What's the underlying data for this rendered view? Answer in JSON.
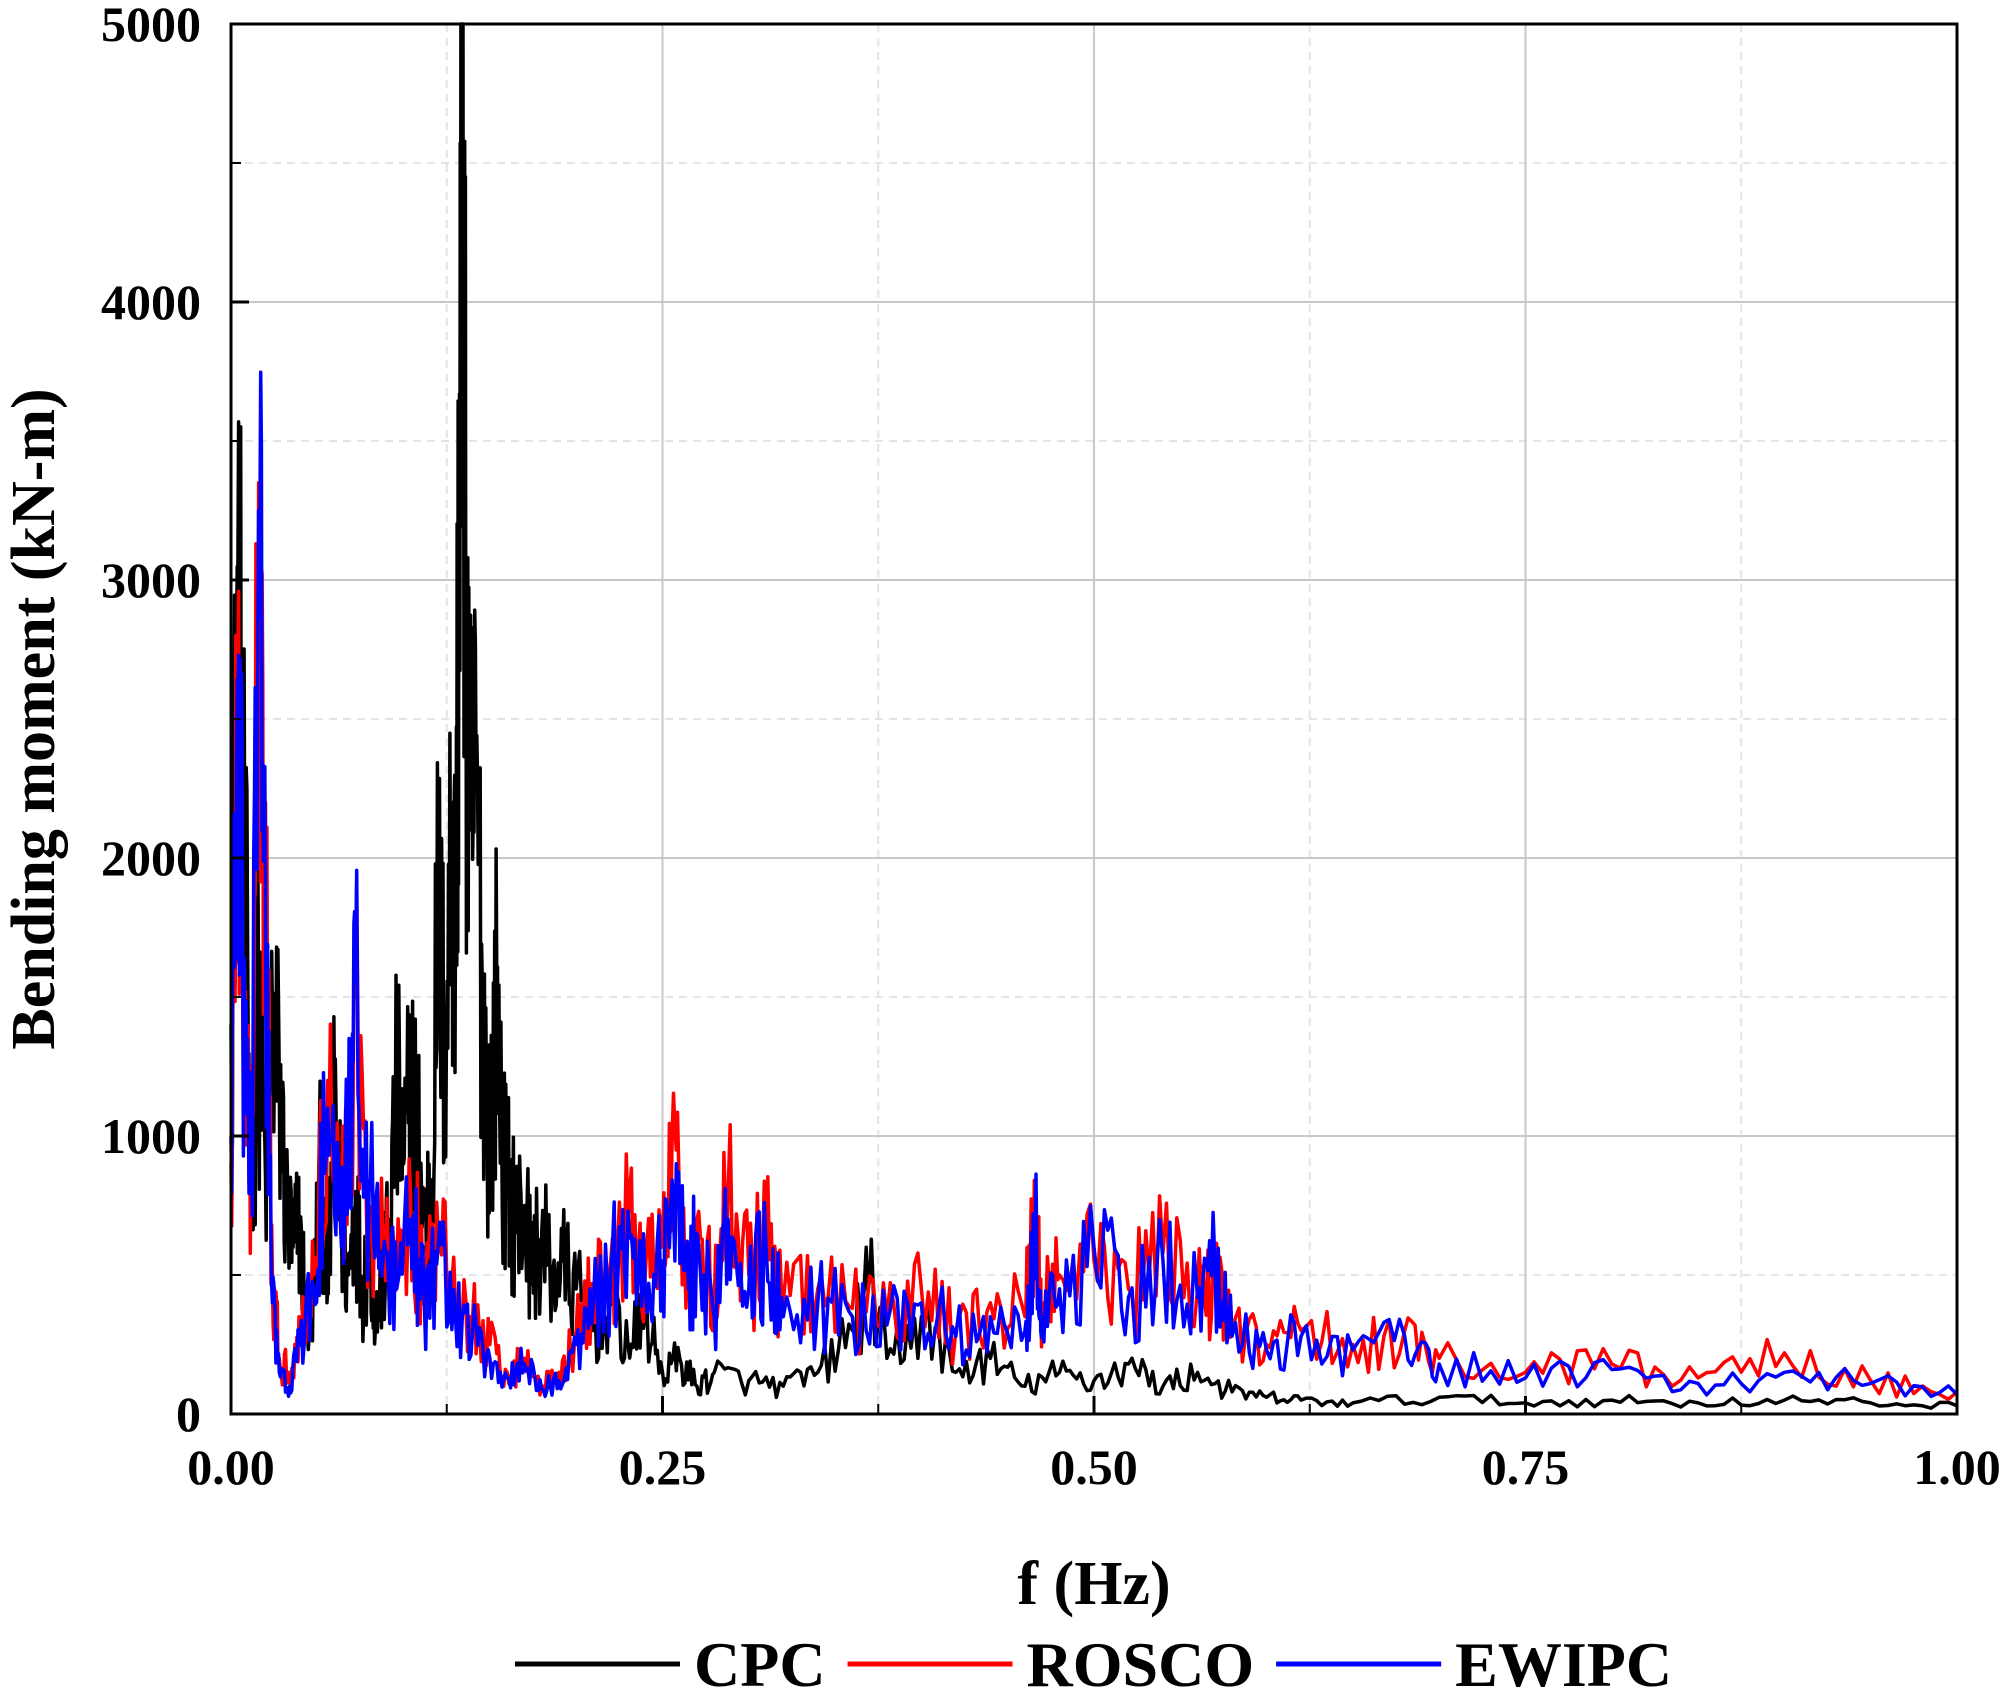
{
  "chart_data": {
    "type": "line",
    "xlabel": "f (Hz)",
    "ylabel": "Bending moment (kN-m)",
    "xlim": [
      0,
      1
    ],
    "ylim": [
      0,
      5000
    ],
    "x_ticks": [
      "0.00",
      "0.25",
      "0.50",
      "0.75",
      "1.00"
    ],
    "y_ticks": [
      "0",
      "1000",
      "2000",
      "3000",
      "4000",
      "5000"
    ],
    "grid": true,
    "legend_position": "bottom",
    "series": [
      {
        "name": "CPC",
        "color": "#000000",
        "points": [
          [
            0.0,
            1400
          ],
          [
            0.004,
            3050
          ],
          [
            0.008,
            1900
          ],
          [
            0.012,
            950
          ],
          [
            0.016,
            1500
          ],
          [
            0.02,
            850
          ],
          [
            0.024,
            1450
          ],
          [
            0.028,
            1200
          ],
          [
            0.032,
            750
          ],
          [
            0.036,
            600
          ],
          [
            0.04,
            700
          ],
          [
            0.044,
            300
          ],
          [
            0.048,
            450
          ],
          [
            0.052,
            900
          ],
          [
            0.056,
            450
          ],
          [
            0.06,
            1100
          ],
          [
            0.064,
            700
          ],
          [
            0.068,
            500
          ],
          [
            0.072,
            800
          ],
          [
            0.076,
            450
          ],
          [
            0.08,
            650
          ],
          [
            0.084,
            350
          ],
          [
            0.088,
            500
          ],
          [
            0.092,
            700
          ],
          [
            0.096,
            1200
          ],
          [
            0.1,
            900
          ],
          [
            0.104,
            1200
          ],
          [
            0.108,
            1050
          ],
          [
            0.112,
            700
          ],
          [
            0.116,
            800
          ],
          [
            0.12,
            1900
          ],
          [
            0.124,
            1300
          ],
          [
            0.128,
            2200
          ],
          [
            0.13,
            1700
          ],
          [
            0.132,
            3200
          ],
          [
            0.134,
            4900
          ],
          [
            0.136,
            3000
          ],
          [
            0.138,
            2100
          ],
          [
            0.142,
            2300
          ],
          [
            0.146,
            1500
          ],
          [
            0.15,
            1000
          ],
          [
            0.154,
            1550
          ],
          [
            0.158,
            900
          ],
          [
            0.162,
            800
          ],
          [
            0.166,
            700
          ],
          [
            0.17,
            750
          ],
          [
            0.174,
            550
          ],
          [
            0.18,
            650
          ],
          [
            0.186,
            500
          ],
          [
            0.192,
            550
          ],
          [
            0.2,
            450
          ],
          [
            0.21,
            300
          ],
          [
            0.22,
            400
          ],
          [
            0.23,
            250
          ],
          [
            0.24,
            350
          ],
          [
            0.25,
            150
          ],
          [
            0.26,
            200
          ],
          [
            0.27,
            100
          ],
          [
            0.28,
            150
          ],
          [
            0.3,
            120
          ],
          [
            0.32,
            100
          ],
          [
            0.34,
            150
          ],
          [
            0.36,
            300
          ],
          [
            0.37,
            480
          ],
          [
            0.38,
            200
          ],
          [
            0.4,
            350
          ],
          [
            0.42,
            150
          ],
          [
            0.44,
            200
          ],
          [
            0.46,
            100
          ],
          [
            0.48,
            150
          ],
          [
            0.5,
            120
          ],
          [
            0.52,
            180
          ],
          [
            0.54,
            100
          ],
          [
            0.56,
            150
          ],
          [
            0.58,
            80
          ],
          [
            0.6,
            60
          ],
          [
            0.62,
            50
          ],
          [
            0.65,
            40
          ],
          [
            0.7,
            60
          ],
          [
            0.75,
            40
          ],
          [
            0.8,
            50
          ],
          [
            0.85,
            40
          ],
          [
            0.9,
            50
          ],
          [
            0.95,
            40
          ],
          [
            1.0,
            30
          ]
        ]
      },
      {
        "name": "ROSCO",
        "color": "#ff0000",
        "points": [
          [
            0.0,
            900
          ],
          [
            0.004,
            2700
          ],
          [
            0.008,
            1200
          ],
          [
            0.012,
            800
          ],
          [
            0.016,
            3350
          ],
          [
            0.02,
            2200
          ],
          [
            0.024,
            500
          ],
          [
            0.028,
            200
          ],
          [
            0.034,
            150
          ],
          [
            0.04,
            300
          ],
          [
            0.048,
            500
          ],
          [
            0.056,
            1200
          ],
          [
            0.064,
            700
          ],
          [
            0.072,
            1500
          ],
          [
            0.08,
            700
          ],
          [
            0.088,
            600
          ],
          [
            0.096,
            500
          ],
          [
            0.104,
            800
          ],
          [
            0.112,
            450
          ],
          [
            0.12,
            650
          ],
          [
            0.13,
            400
          ],
          [
            0.14,
            350
          ],
          [
            0.15,
            250
          ],
          [
            0.16,
            150
          ],
          [
            0.17,
            200
          ],
          [
            0.18,
            100
          ],
          [
            0.19,
            150
          ],
          [
            0.2,
            300
          ],
          [
            0.21,
            450
          ],
          [
            0.22,
            550
          ],
          [
            0.23,
            700
          ],
          [
            0.24,
            500
          ],
          [
            0.25,
            600
          ],
          [
            0.258,
            950
          ],
          [
            0.265,
            500
          ],
          [
            0.27,
            700
          ],
          [
            0.28,
            400
          ],
          [
            0.288,
            800
          ],
          [
            0.3,
            500
          ],
          [
            0.31,
            650
          ],
          [
            0.32,
            400
          ],
          [
            0.34,
            450
          ],
          [
            0.36,
            380
          ],
          [
            0.38,
            350
          ],
          [
            0.4,
            450
          ],
          [
            0.42,
            300
          ],
          [
            0.44,
            400
          ],
          [
            0.46,
            350
          ],
          [
            0.466,
            750
          ],
          [
            0.47,
            400
          ],
          [
            0.48,
            500
          ],
          [
            0.5,
            550
          ],
          [
            0.52,
            450
          ],
          [
            0.54,
            580
          ],
          [
            0.56,
            450
          ],
          [
            0.57,
            500
          ],
          [
            0.58,
            300
          ],
          [
            0.6,
            250
          ],
          [
            0.62,
            300
          ],
          [
            0.65,
            250
          ],
          [
            0.68,
            300
          ],
          [
            0.7,
            200
          ],
          [
            0.75,
            150
          ],
          [
            0.8,
            180
          ],
          [
            0.85,
            130
          ],
          [
            0.9,
            220
          ],
          [
            0.95,
            120
          ],
          [
            1.0,
            80
          ]
        ]
      },
      {
        "name": "EWIPC",
        "color": "#0000ff",
        "points": [
          [
            0.0,
            1000
          ],
          [
            0.004,
            2600
          ],
          [
            0.008,
            1300
          ],
          [
            0.012,
            900
          ],
          [
            0.016,
            3250
          ],
          [
            0.02,
            1900
          ],
          [
            0.024,
            400
          ],
          [
            0.028,
            150
          ],
          [
            0.034,
            100
          ],
          [
            0.04,
            250
          ],
          [
            0.048,
            450
          ],
          [
            0.056,
            1100
          ],
          [
            0.064,
            600
          ],
          [
            0.068,
            1000
          ],
          [
            0.072,
            1550
          ],
          [
            0.08,
            800
          ],
          [
            0.088,
            550
          ],
          [
            0.096,
            450
          ],
          [
            0.104,
            700
          ],
          [
            0.112,
            400
          ],
          [
            0.12,
            600
          ],
          [
            0.13,
            350
          ],
          [
            0.14,
            300
          ],
          [
            0.15,
            200
          ],
          [
            0.16,
            130
          ],
          [
            0.17,
            180
          ],
          [
            0.18,
            90
          ],
          [
            0.19,
            120
          ],
          [
            0.2,
            250
          ],
          [
            0.21,
            400
          ],
          [
            0.22,
            500
          ],
          [
            0.23,
            730
          ],
          [
            0.24,
            450
          ],
          [
            0.25,
            550
          ],
          [
            0.258,
            900
          ],
          [
            0.265,
            450
          ],
          [
            0.27,
            650
          ],
          [
            0.28,
            350
          ],
          [
            0.288,
            700
          ],
          [
            0.3,
            450
          ],
          [
            0.31,
            600
          ],
          [
            0.32,
            350
          ],
          [
            0.34,
            400
          ],
          [
            0.36,
            350
          ],
          [
            0.38,
            320
          ],
          [
            0.4,
            400
          ],
          [
            0.42,
            280
          ],
          [
            0.44,
            350
          ],
          [
            0.46,
            300
          ],
          [
            0.466,
            700
          ],
          [
            0.47,
            350
          ],
          [
            0.48,
            450
          ],
          [
            0.5,
            600
          ],
          [
            0.52,
            420
          ],
          [
            0.54,
            550
          ],
          [
            0.56,
            420
          ],
          [
            0.57,
            550
          ],
          [
            0.58,
            280
          ],
          [
            0.6,
            230
          ],
          [
            0.62,
            280
          ],
          [
            0.65,
            230
          ],
          [
            0.68,
            280
          ],
          [
            0.7,
            180
          ],
          [
            0.75,
            130
          ],
          [
            0.8,
            160
          ],
          [
            0.85,
            110
          ],
          [
            0.9,
            150
          ],
          [
            0.95,
            110
          ],
          [
            1.0,
            70
          ]
        ]
      }
    ]
  }
}
